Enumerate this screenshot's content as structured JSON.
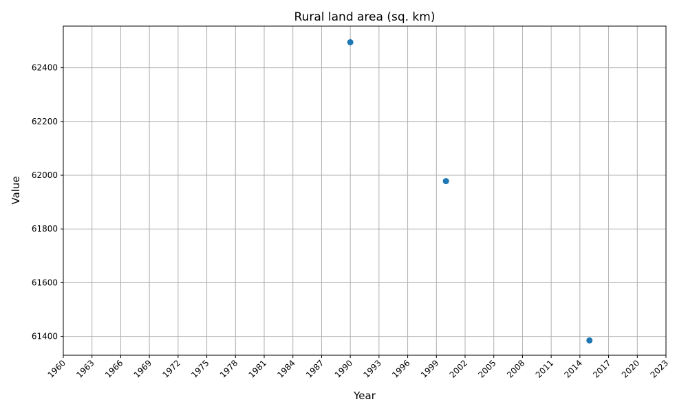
{
  "chart_data": {
    "type": "scatter",
    "title": "Rural land area (sq. km)",
    "xlabel": "Year",
    "ylabel": "Value",
    "xlim": [
      1960,
      2023
    ],
    "ylim": [
      61330,
      62555
    ],
    "x_ticks": [
      1960,
      1963,
      1966,
      1969,
      1972,
      1975,
      1978,
      1981,
      1984,
      1987,
      1990,
      1993,
      1996,
      1999,
      2002,
      2005,
      2008,
      2011,
      2014,
      2017,
      2020,
      2023
    ],
    "y_ticks": [
      61400,
      61600,
      61800,
      62000,
      62200,
      62400
    ],
    "grid": true,
    "marker_color": "#1f77b4",
    "series": [
      {
        "x": [
          1990,
          2000,
          2015
        ],
        "y": [
          62495,
          61978,
          61385
        ]
      }
    ]
  }
}
